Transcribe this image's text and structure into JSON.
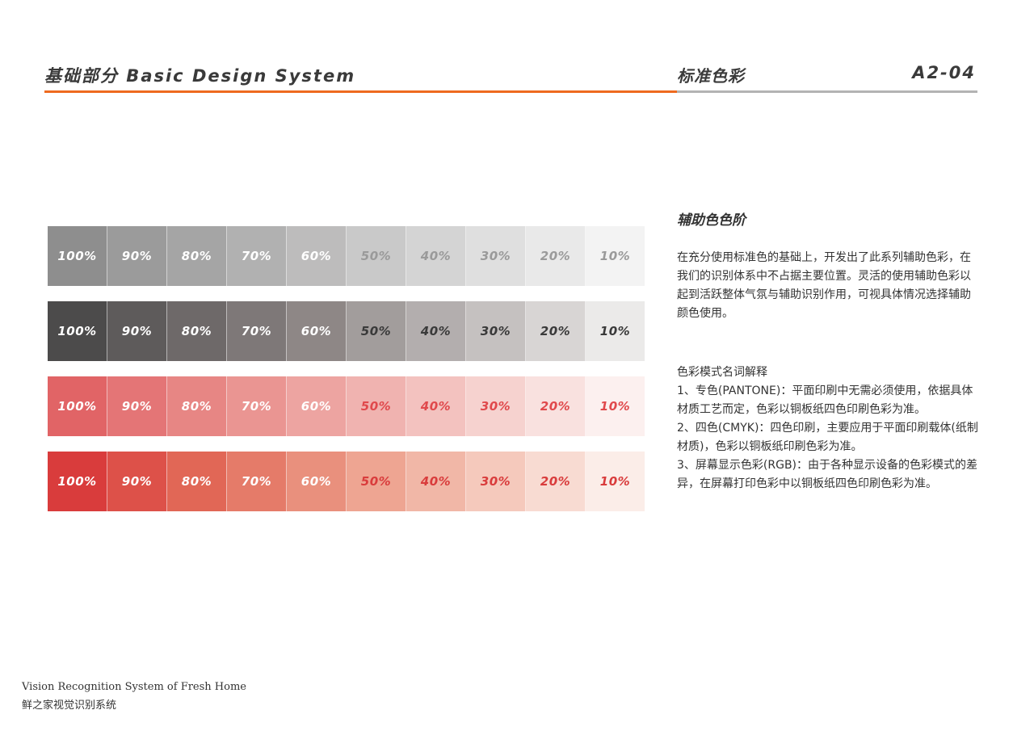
{
  "header": {
    "section": "基础部分  Basic Design System",
    "topic": "标准色彩",
    "code": "A2-04",
    "accent_color": "#ee6a1f",
    "divider_color": "#b3b3b3"
  },
  "swatch_rows": [
    {
      "name": "gray",
      "swatches": [
        {
          "label": "100%",
          "bg": "#8e8e8e",
          "fg": "#ffffff"
        },
        {
          "label": "90%",
          "bg": "#9b9b9b",
          "fg": "#ffffff"
        },
        {
          "label": "80%",
          "bg": "#a5a5a5",
          "fg": "#ffffff"
        },
        {
          "label": "70%",
          "bg": "#b1b1b1",
          "fg": "#ffffff"
        },
        {
          "label": "60%",
          "bg": "#bdbcbc",
          "fg": "#ffffff"
        },
        {
          "label": "50%",
          "bg": "#c9c9c9",
          "fg": "#9a9a9a"
        },
        {
          "label": "40%",
          "bg": "#d4d4d4",
          "fg": "#9a9a9a"
        },
        {
          "label": "30%",
          "bg": "#dfdfdf",
          "fg": "#9a9a9a"
        },
        {
          "label": "20%",
          "bg": "#e9e9e9",
          "fg": "#9a9a9a"
        },
        {
          "label": "10%",
          "bg": "#f3f3f3",
          "fg": "#9a9a9a"
        }
      ]
    },
    {
      "name": "dark-gray",
      "swatches": [
        {
          "label": "100%",
          "bg": "#4c4b4b",
          "fg": "#ffffff"
        },
        {
          "label": "90%",
          "bg": "#5e5b5b",
          "fg": "#ffffff"
        },
        {
          "label": "80%",
          "bg": "#6e6969",
          "fg": "#ffffff"
        },
        {
          "label": "70%",
          "bg": "#7e7878",
          "fg": "#ffffff"
        },
        {
          "label": "60%",
          "bg": "#8e8786",
          "fg": "#ffffff"
        },
        {
          "label": "50%",
          "bg": "#a29d9c",
          "fg": "#3a3a3a"
        },
        {
          "label": "40%",
          "bg": "#b3aeae",
          "fg": "#3a3a3a"
        },
        {
          "label": "30%",
          "bg": "#c5c1c0",
          "fg": "#3a3a3a"
        },
        {
          "label": "20%",
          "bg": "#d8d5d4",
          "fg": "#3a3a3a"
        },
        {
          "label": "10%",
          "bg": "#ebeae9",
          "fg": "#3a3a3a"
        }
      ]
    },
    {
      "name": "rose",
      "swatches": [
        {
          "label": "100%",
          "bg": "#e16466",
          "fg": "#ffffff"
        },
        {
          "label": "90%",
          "bg": "#e47576",
          "fg": "#ffffff"
        },
        {
          "label": "80%",
          "bg": "#e78684",
          "fg": "#ffffff"
        },
        {
          "label": "70%",
          "bg": "#ea9592",
          "fg": "#ffffff"
        },
        {
          "label": "60%",
          "bg": "#eda4a1",
          "fg": "#ffffff"
        },
        {
          "label": "50%",
          "bg": "#f0b3b0",
          "fg": "#e0494c"
        },
        {
          "label": "40%",
          "bg": "#f3c2bf",
          "fg": "#e0494c"
        },
        {
          "label": "30%",
          "bg": "#f6d2cf",
          "fg": "#e0494c"
        },
        {
          "label": "20%",
          "bg": "#f9e1df",
          "fg": "#e0494c"
        },
        {
          "label": "10%",
          "bg": "#fcf0ef",
          "fg": "#e0494c"
        }
      ]
    },
    {
      "name": "red",
      "swatches": [
        {
          "label": "100%",
          "bg": "#d93c3c",
          "fg": "#ffffff"
        },
        {
          "label": "90%",
          "bg": "#dd5149",
          "fg": "#ffffff"
        },
        {
          "label": "80%",
          "bg": "#e16756",
          "fg": "#ffffff"
        },
        {
          "label": "70%",
          "bg": "#e57b69",
          "fg": "#ffffff"
        },
        {
          "label": "60%",
          "bg": "#e9907d",
          "fg": "#ffffff"
        },
        {
          "label": "50%",
          "bg": "#eea592",
          "fg": "#d93c3c"
        },
        {
          "label": "40%",
          "bg": "#f1b7a7",
          "fg": "#d93c3c"
        },
        {
          "label": "30%",
          "bg": "#f5c9bc",
          "fg": "#d93c3c"
        },
        {
          "label": "20%",
          "bg": "#f8dbd2",
          "fg": "#d93c3c"
        },
        {
          "label": "10%",
          "bg": "#fbede8",
          "fg": "#d93c3c"
        }
      ]
    }
  ],
  "aux": {
    "title": "辅助色色阶",
    "body": "在充分使用标准色的基础上，开发出了此系列辅助色彩，在我们的识别体系中不占据主要位置。灵活的使用辅助色彩以起到活跃整体气氛与辅助识别作用，可视具体情况选择辅助颜色使用。"
  },
  "modes": {
    "heading": "色彩模式名词解释",
    "items": [
      "1、专色(PANTONE)：平面印刷中无需必须使用，依据具体材质工艺而定，色彩以铜板纸四色印刷色彩为准。",
      "2、四色(CMYK)：四色印刷，主要应用于平面印刷载体(纸制材质)，色彩以铜板纸印刷色彩为准。",
      "3、屏幕显示色彩(RGB)：由于各种显示设备的色彩模式的差异，在屏幕打印色彩中以铜板纸四色印刷色彩为准。"
    ]
  },
  "footer": {
    "en": "Vision Recognition System of Fresh Home",
    "cn": "鲜之家视觉识别系统"
  }
}
